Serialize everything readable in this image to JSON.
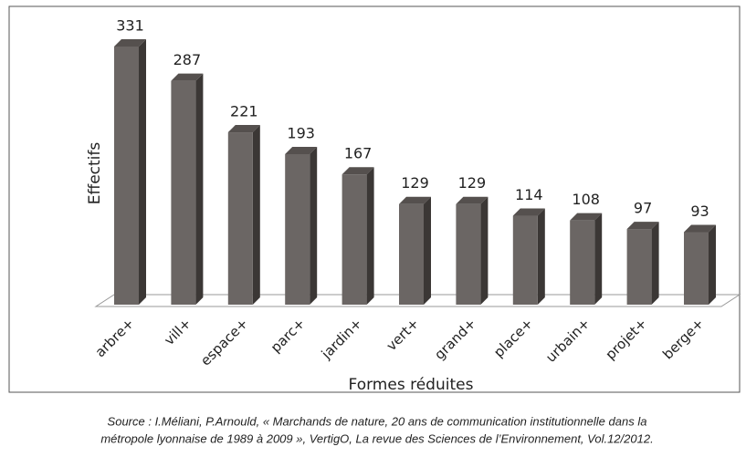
{
  "chart_data": {
    "type": "bar3d",
    "y_label": "Effectifs",
    "x_label": "Formes réduites",
    "categories": [
      "arbre+",
      "vill+",
      "espace+",
      "parc+",
      "jardin+",
      "vert+",
      "grand+",
      "place+",
      "urbain+",
      "projet+",
      "berge+"
    ],
    "values": [
      331,
      287,
      221,
      193,
      167,
      129,
      129,
      114,
      108,
      97,
      93
    ],
    "color": "#6b6664"
  },
  "source": [
    "Source : I.Méliani, P.Arnould, « Marchands de nature, 20 ans de communication institutionnelle dans la",
    "métropole lyonnaise de 1989 à 2009 », VertigO, La revue des Sciences de l’Environnement, Vol.12/2012."
  ]
}
